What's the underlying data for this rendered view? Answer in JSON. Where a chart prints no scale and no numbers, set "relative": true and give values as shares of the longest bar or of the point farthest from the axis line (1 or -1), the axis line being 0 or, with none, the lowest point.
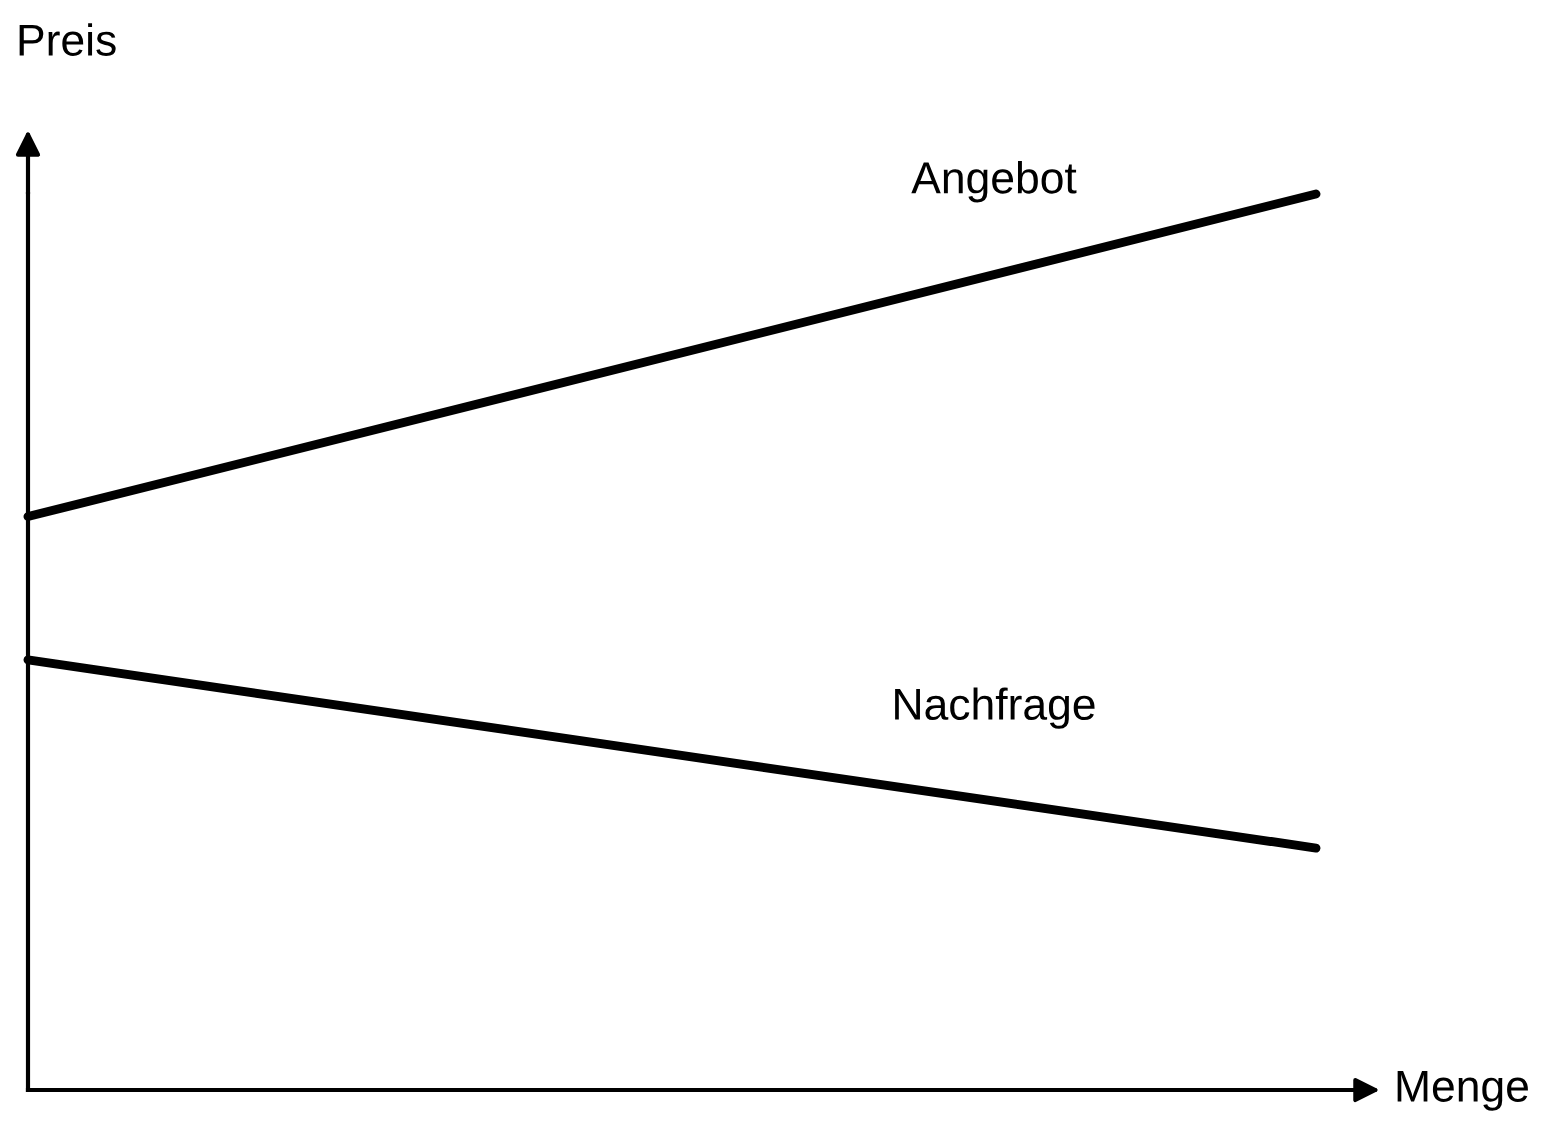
{
  "chart_data": {
    "type": "line",
    "relative": true,
    "xlabel": "Menge",
    "ylabel": "Preis",
    "legend": false,
    "marker": "none",
    "line_style": "solid",
    "categories": [
      null,
      null
    ],
    "series": [
      {
        "name": "Angebot",
        "color": "#000000",
        "values": [
          0.64,
          1
        ]
      },
      {
        "name": "Nachfrage",
        "color": "#000000",
        "values": [
          0.48,
          0.27
        ]
      }
    ]
  }
}
